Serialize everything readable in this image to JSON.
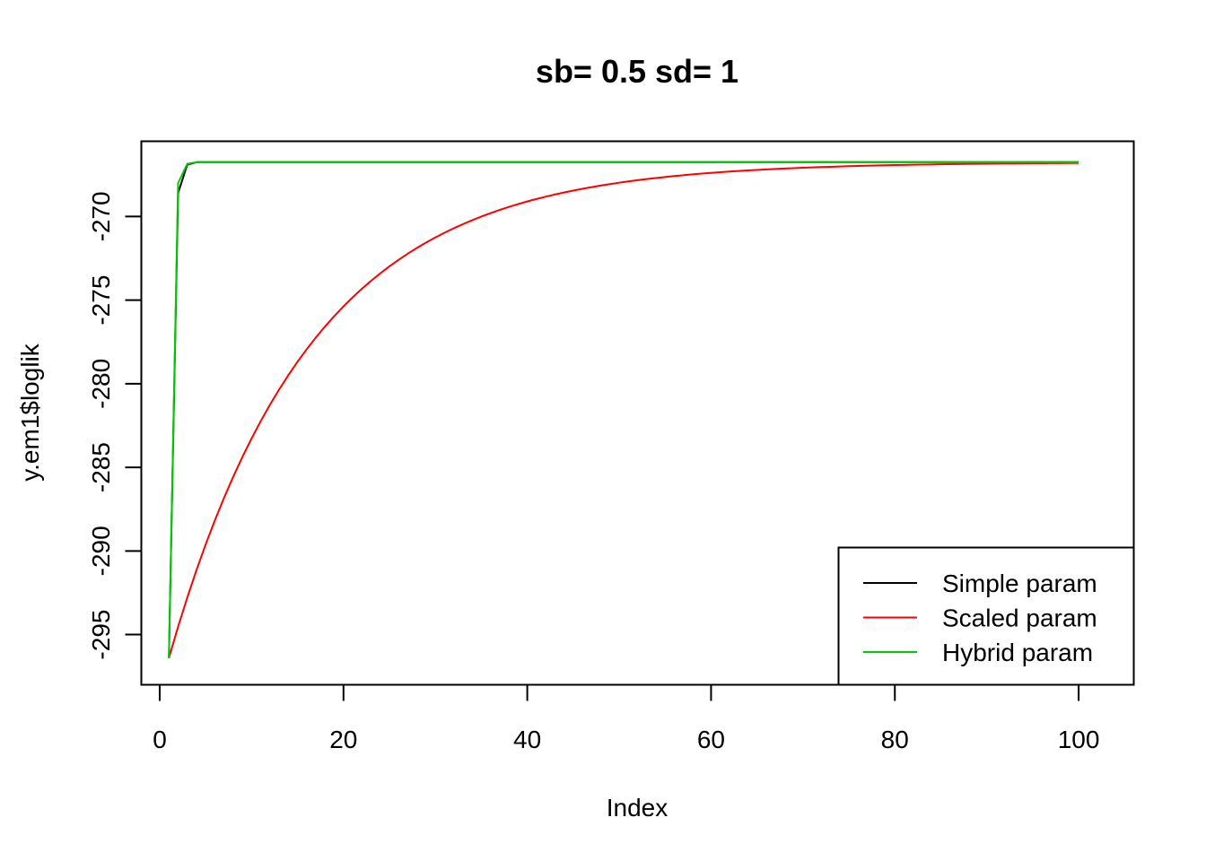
{
  "chart_data": {
    "type": "line",
    "title": "sb= 0.5 sd= 1",
    "xlabel": "Index",
    "ylabel": "y.em1$loglik",
    "xlim": [
      -2,
      106
    ],
    "ylim": [
      -298,
      -265.5
    ],
    "xticks": [
      0,
      20,
      40,
      60,
      80,
      100
    ],
    "yticks": [
      -270,
      -275,
      -280,
      -285,
      -290,
      -295
    ],
    "grid": false,
    "legend_position": "bottom-right",
    "series": [
      {
        "name": "Simple param",
        "color": "#000000",
        "x": [
          1,
          2,
          3,
          4,
          5,
          100
        ],
        "y": [
          -296.4,
          -268.6,
          -266.9,
          -266.75,
          -266.75,
          -266.75
        ]
      },
      {
        "name": "Scaled param",
        "color": "#ff0000",
        "formula": {
          "x_start": 1,
          "x_end": 100,
          "y_start": -296.4,
          "y_asymptote": -266.75,
          "decay": 0.065
        }
      },
      {
        "name": "Hybrid param",
        "color": "#00cd00",
        "x": [
          1,
          2,
          3,
          4,
          5,
          100
        ],
        "y": [
          -296.4,
          -268.0,
          -266.85,
          -266.75,
          -266.75,
          -266.75
        ]
      }
    ]
  }
}
